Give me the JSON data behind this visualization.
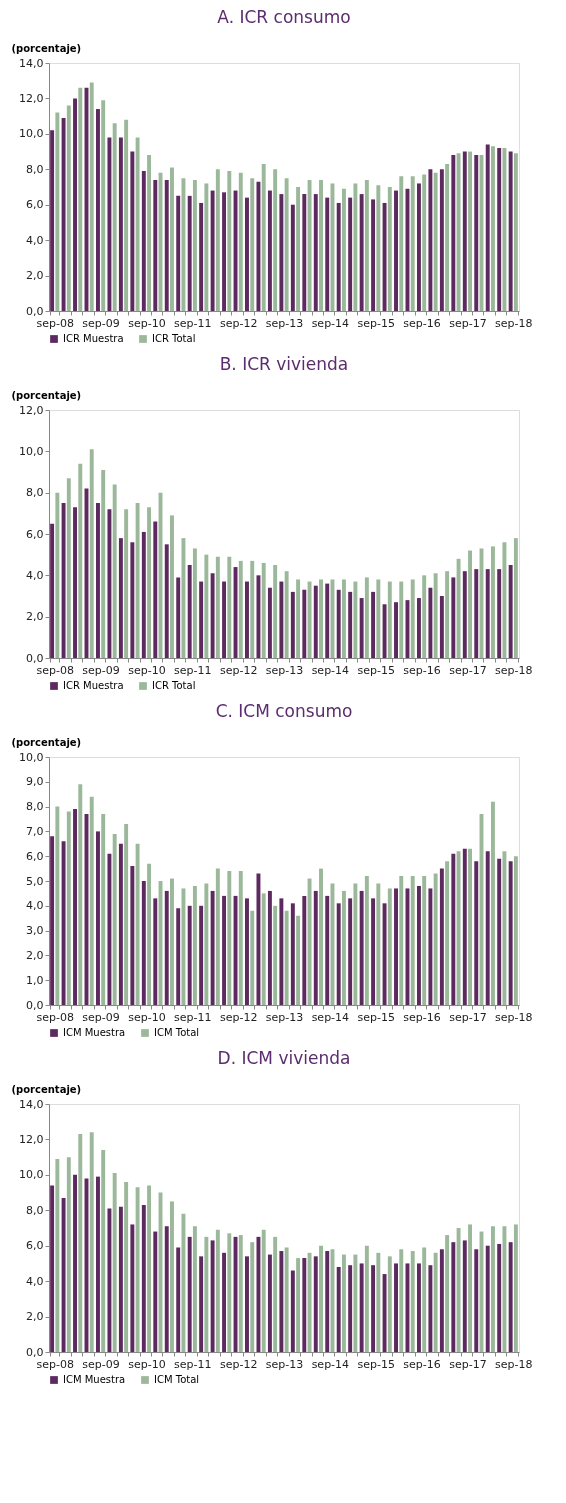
{
  "chart_data": [
    {
      "type": "bar",
      "title": "A. ICR consumo",
      "ylabel": "(porcentaje)",
      "legend": "bottom",
      "grid": false,
      "categories": [
        "sep-08",
        null,
        null,
        null,
        "sep-09",
        null,
        null,
        null,
        "sep-10",
        null,
        null,
        null,
        "sep-11",
        null,
        null,
        null,
        "sep-12",
        null,
        null,
        null,
        "sep-13",
        null,
        null,
        null,
        "sep-14",
        null,
        null,
        null,
        "sep-15",
        null,
        null,
        null,
        "sep-16",
        null,
        null,
        null,
        "sep-17",
        null,
        null,
        null,
        "sep-18"
      ],
      "ylim": [
        0,
        14
      ],
      "yticks": [
        {
          "value": 0,
          "label": "0,0"
        },
        {
          "value": 2,
          "label": "2,0"
        },
        {
          "value": 4,
          "label": "4,0"
        },
        {
          "value": 6,
          "label": "6,0"
        },
        {
          "value": 8,
          "label": "8,0"
        },
        {
          "value": 10,
          "label": "10,0"
        },
        {
          "value": 12,
          "label": "12,0"
        },
        {
          "value": 14,
          "label": "14,0"
        }
      ],
      "series": [
        {
          "name": "ICR Muestra",
          "color": "#5c2a5f",
          "values": [
            10.2,
            10.9,
            12.0,
            12.6,
            11.4,
            9.8,
            9.8,
            9.0,
            7.9,
            7.4,
            7.4,
            6.5,
            6.5,
            6.1,
            6.8,
            6.7,
            6.8,
            6.4,
            7.3,
            6.8,
            6.6,
            6.0,
            6.6,
            6.6,
            6.4,
            6.1,
            6.4,
            6.6,
            6.3,
            6.1,
            6.8,
            6.9,
            7.2,
            8.0,
            8.0,
            8.8,
            9.0,
            8.8,
            9.4,
            9.2,
            9.0
          ]
        },
        {
          "name": "ICR Total",
          "color": "#9cb89a",
          "values": [
            11.2,
            11.6,
            12.6,
            12.9,
            11.9,
            10.6,
            10.8,
            9.8,
            8.8,
            7.8,
            8.1,
            7.5,
            7.4,
            7.2,
            8.0,
            7.9,
            7.8,
            7.5,
            8.3,
            8.0,
            7.5,
            7.0,
            7.4,
            7.4,
            7.2,
            6.9,
            7.2,
            7.4,
            7.1,
            7.0,
            7.6,
            7.6,
            7.7,
            7.8,
            8.3,
            8.9,
            9.0,
            8.8,
            9.3,
            9.2,
            8.9
          ]
        }
      ]
    },
    {
      "type": "bar",
      "title": "B. ICR vivienda",
      "ylabel": "(porcentaje)",
      "legend": "bottom",
      "grid": false,
      "categories": [
        "sep-08",
        null,
        null,
        null,
        "sep-09",
        null,
        null,
        null,
        "sep-10",
        null,
        null,
        null,
        "sep-11",
        null,
        null,
        null,
        "sep-12",
        null,
        null,
        null,
        "sep-13",
        null,
        null,
        null,
        "sep-14",
        null,
        null,
        null,
        "sep-15",
        null,
        null,
        null,
        "sep-16",
        null,
        null,
        null,
        "sep-17",
        null,
        null,
        null,
        "sep-18"
      ],
      "ylim": [
        0,
        12
      ],
      "yticks": [
        {
          "value": 0,
          "label": "0,0"
        },
        {
          "value": 2,
          "label": "2,0"
        },
        {
          "value": 4,
          "label": "4,0"
        },
        {
          "value": 6,
          "label": "6,0"
        },
        {
          "value": 8,
          "label": "8,0"
        },
        {
          "value": 10,
          "label": "10,0"
        },
        {
          "value": 12,
          "label": "12,0"
        }
      ],
      "series": [
        {
          "name": "ICR Muestra",
          "color": "#5c2a5f",
          "values": [
            6.5,
            7.5,
            7.3,
            8.2,
            7.5,
            7.2,
            5.8,
            5.6,
            6.1,
            6.6,
            5.5,
            3.9,
            4.5,
            3.7,
            4.1,
            3.7,
            4.4,
            3.7,
            4.0,
            3.4,
            3.7,
            3.2,
            3.3,
            3.5,
            3.6,
            3.3,
            3.2,
            2.9,
            3.2,
            2.6,
            2.7,
            2.8,
            2.9,
            3.4,
            3.0,
            3.9,
            4.2,
            4.3,
            4.3,
            4.3,
            4.5
          ]
        },
        {
          "name": "ICR Total",
          "color": "#9cb89a",
          "values": [
            8.0,
            8.7,
            9.4,
            10.1,
            9.1,
            8.4,
            7.2,
            7.5,
            7.3,
            8.0,
            6.9,
            5.8,
            5.3,
            5.0,
            4.9,
            4.9,
            4.7,
            4.7,
            4.6,
            4.5,
            4.2,
            3.8,
            3.7,
            3.8,
            3.8,
            3.8,
            3.7,
            3.9,
            3.8,
            3.7,
            3.7,
            3.8,
            4.0,
            4.1,
            4.2,
            4.8,
            5.2,
            5.3,
            5.4,
            5.6,
            5.8
          ]
        }
      ]
    },
    {
      "type": "bar",
      "title": "C. ICM consumo",
      "ylabel": "(porcentaje)",
      "legend": "bottom",
      "grid": false,
      "categories": [
        "sep-08",
        null,
        null,
        null,
        "sep-09",
        null,
        null,
        null,
        "sep-10",
        null,
        null,
        null,
        "sep-11",
        null,
        null,
        null,
        "sep-12",
        null,
        null,
        null,
        "sep-13",
        null,
        null,
        null,
        "sep-14",
        null,
        null,
        null,
        "sep-15",
        null,
        null,
        null,
        "sep-16",
        null,
        null,
        null,
        "sep-17",
        null,
        null,
        null,
        "sep-18"
      ],
      "ylim": [
        0,
        10
      ],
      "yticks": [
        {
          "value": 0,
          "label": "0,0"
        },
        {
          "value": 1,
          "label": "1,0"
        },
        {
          "value": 2,
          "label": "2,0"
        },
        {
          "value": 3,
          "label": "3,0"
        },
        {
          "value": 4,
          "label": "4,0"
        },
        {
          "value": 5,
          "label": "5,0"
        },
        {
          "value": 6,
          "label": "6,0"
        },
        {
          "value": 7,
          "label": "7,0"
        },
        {
          "value": 8,
          "label": "8,0"
        },
        {
          "value": 9,
          "label": "9,0"
        },
        {
          "value": 10,
          "label": "10,0"
        }
      ],
      "series": [
        {
          "name": "ICM Muestra",
          "color": "#5c2a5f",
          "values": [
            6.8,
            6.6,
            7.9,
            7.7,
            7.0,
            6.1,
            6.5,
            5.6,
            5.0,
            4.3,
            4.6,
            3.9,
            4.0,
            4.0,
            4.6,
            4.4,
            4.4,
            4.3,
            5.3,
            4.6,
            4.3,
            4.1,
            4.4,
            4.6,
            4.4,
            4.1,
            4.3,
            4.6,
            4.3,
            4.1,
            4.7,
            4.7,
            4.8,
            4.7,
            5.5,
            6.1,
            6.3,
            5.8,
            6.2,
            5.9,
            5.8
          ]
        },
        {
          "name": "ICM Total",
          "color": "#9cb89a",
          "values": [
            8.0,
            7.8,
            8.9,
            8.4,
            7.7,
            6.9,
            7.3,
            6.5,
            5.7,
            5.0,
            5.1,
            4.7,
            4.8,
            4.9,
            5.5,
            5.4,
            5.4,
            3.8,
            4.5,
            4.0,
            3.8,
            3.6,
            5.1,
            5.5,
            4.9,
            4.6,
            4.9,
            5.2,
            4.9,
            4.7,
            5.2,
            5.2,
            5.2,
            5.3,
            5.8,
            6.2,
            6.3,
            7.7,
            8.2,
            6.2,
            6.0
          ]
        }
      ]
    },
    {
      "type": "bar",
      "title": "D. ICM vivienda",
      "ylabel": "(porcentaje)",
      "legend": "bottom",
      "grid": false,
      "categories": [
        "sep-08",
        null,
        null,
        null,
        "sep-09",
        null,
        null,
        null,
        "sep-10",
        null,
        null,
        null,
        "sep-11",
        null,
        null,
        null,
        "sep-12",
        null,
        null,
        null,
        "sep-13",
        null,
        null,
        null,
        "sep-14",
        null,
        null,
        null,
        "sep-15",
        null,
        null,
        null,
        "sep-16",
        null,
        null,
        null,
        "sep-17",
        null,
        null,
        null,
        "sep-18"
      ],
      "ylim": [
        0,
        14
      ],
      "yticks": [
        {
          "value": 0,
          "label": "0,0"
        },
        {
          "value": 2,
          "label": "2,0"
        },
        {
          "value": 4,
          "label": "4,0"
        },
        {
          "value": 6,
          "label": "6,0"
        },
        {
          "value": 8,
          "label": "8,0"
        },
        {
          "value": 10,
          "label": "10,0"
        },
        {
          "value": 12,
          "label": "12,0"
        },
        {
          "value": 14,
          "label": "14,0"
        }
      ],
      "series": [
        {
          "name": "ICM Muestra",
          "color": "#5c2a5f",
          "values": [
            9.4,
            8.7,
            10.0,
            9.8,
            9.9,
            8.1,
            8.2,
            7.2,
            8.3,
            6.8,
            7.1,
            5.9,
            6.5,
            5.4,
            6.3,
            5.6,
            6.5,
            5.4,
            6.5,
            5.5,
            5.7,
            4.6,
            5.3,
            5.4,
            5.7,
            4.8,
            4.9,
            5.0,
            4.9,
            4.4,
            5.0,
            5.0,
            5.0,
            4.9,
            5.8,
            6.2,
            6.3,
            5.8,
            6.0,
            6.1,
            6.2
          ]
        },
        {
          "name": "ICM Total",
          "color": "#9cb89a",
          "values": [
            10.9,
            11.0,
            12.3,
            12.4,
            11.4,
            10.1,
            9.6,
            9.3,
            9.4,
            9.0,
            8.5,
            7.8,
            7.1,
            6.5,
            6.9,
            6.7,
            6.6,
            6.2,
            6.9,
            6.5,
            5.9,
            5.3,
            5.6,
            6.0,
            5.8,
            5.5,
            5.5,
            6.0,
            5.6,
            5.4,
            5.8,
            5.7,
            5.9,
            5.6,
            6.6,
            7.0,
            7.2,
            6.8,
            7.1,
            7.1,
            7.2
          ]
        }
      ]
    }
  ]
}
